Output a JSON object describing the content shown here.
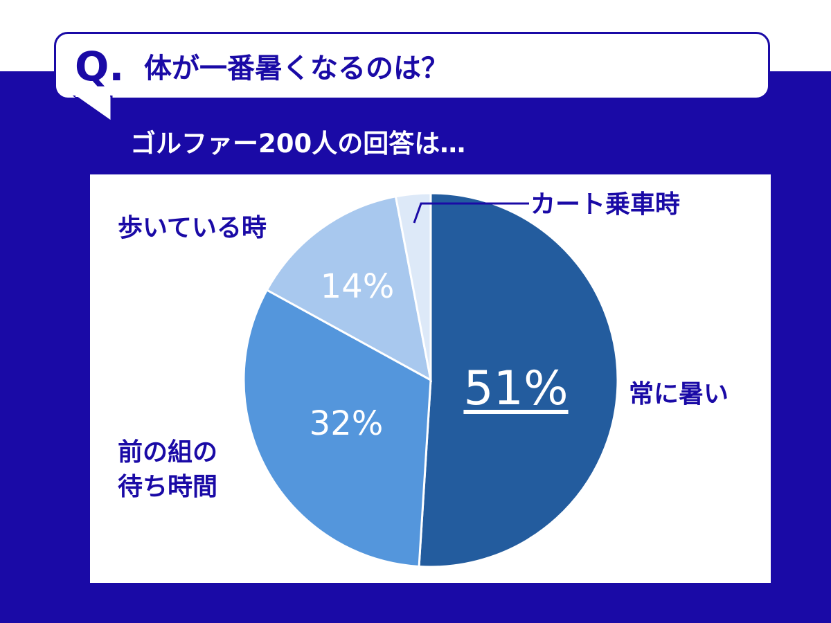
{
  "question": {
    "q_mark": "Q.",
    "text": "体が一番暑くなるのは？"
  },
  "subtitle": "ゴルファー200人の回答は…",
  "colors": {
    "navy": "#1a0aa6",
    "slice_1": "#235c9e",
    "slice_2": "#5496dc",
    "slice_3": "#a8c8ee",
    "slice_4": "#dde9f8"
  },
  "chart_data": {
    "type": "pie",
    "start": "12 o'clock, clockwise",
    "slices": [
      {
        "label": "常に暑い",
        "value": 51,
        "display": "51%"
      },
      {
        "label": "前の組の待ち時間",
        "value": 32,
        "display": "32%"
      },
      {
        "label": "歩いている時",
        "value": 14,
        "display": "14%"
      },
      {
        "label": "カート乗車時",
        "value": 3,
        "display": ""
      }
    ],
    "label_lines": {
      "slice_2": [
        "前の組の",
        "待ち時間"
      ]
    }
  }
}
